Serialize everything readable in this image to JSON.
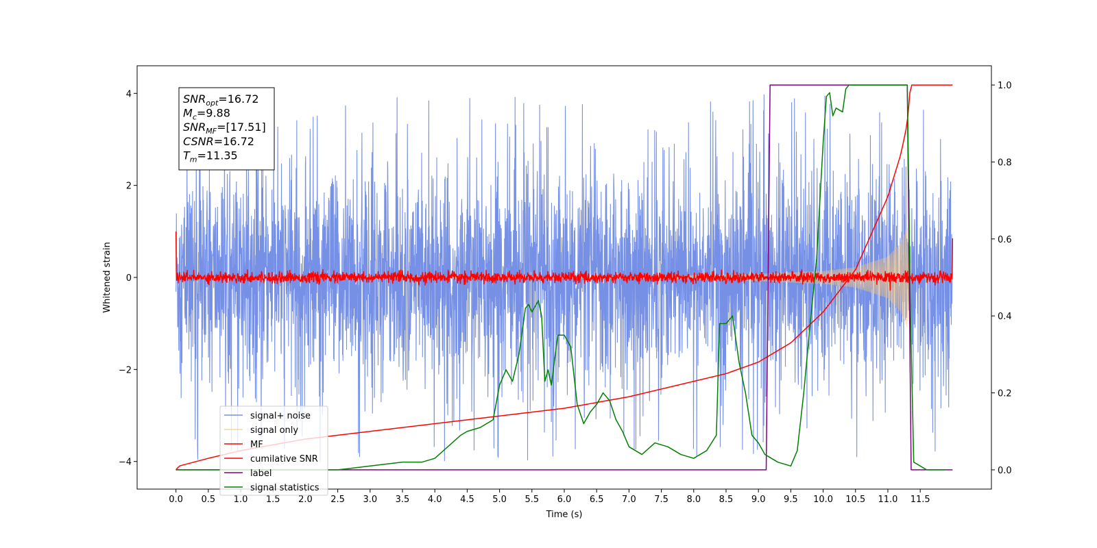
{
  "chart_data": {
    "type": "line",
    "xlabel": "Time (s)",
    "ylabel_left": "Whitened strain",
    "ylabel_right": "",
    "xlim": [
      -0.6,
      12.6
    ],
    "ylim_left": [
      -4.6,
      4.6
    ],
    "ylim_right": [
      -0.05,
      1.05
    ],
    "x_ticks": [
      0.0,
      0.5,
      1.0,
      1.5,
      2.0,
      2.5,
      3.0,
      3.5,
      4.0,
      4.5,
      5.0,
      5.5,
      6.0,
      6.5,
      7.0,
      7.5,
      8.0,
      8.5,
      9.0,
      9.5,
      10.0,
      10.5,
      11.0,
      11.5
    ],
    "x_tick_labels": [
      "0.0",
      "0.5",
      "1.0",
      "1.5",
      "2.0",
      "2.5",
      "3.0",
      "3.5",
      "4.0",
      "4.5",
      "5.0",
      "5.5",
      "6.0",
      "6.5",
      "7.0",
      "7.5",
      "8.0",
      "8.5",
      "9.0",
      "9.5",
      "10.0",
      "10.5",
      "11.0",
      "11.5"
    ],
    "y_left_ticks": [
      -4,
      -2,
      0,
      2,
      4
    ],
    "y_left_tick_labels": [
      "−4",
      "−2",
      "0",
      "2",
      "4"
    ],
    "y_right_ticks": [
      0.0,
      0.2,
      0.4,
      0.6,
      0.8,
      1.0
    ],
    "y_right_tick_labels": [
      "0.0",
      "0.2",
      "0.4",
      "0.6",
      "0.8",
      "1.0"
    ],
    "grid": false,
    "legend_position": "lower-left",
    "annotation": {
      "lines": [
        {
          "sym": "SNR",
          "sub": "opt",
          "val": "=16.72"
        },
        {
          "sym": "M",
          "sub": "c",
          "val": "=9.88"
        },
        {
          "sym": "SNR",
          "sub": "MF",
          "val": "=[17.51]"
        },
        {
          "sym": "CSNR",
          "sub": "",
          "val": "=16.72"
        },
        {
          "sym": "T",
          "sub": "m",
          "val": "=11.35"
        }
      ]
    },
    "series": [
      {
        "name": "signal+ noise",
        "color": "#7690e6",
        "axis": "left",
        "kind": "noise_band",
        "x_range": [
          0,
          12.0
        ],
        "spread": 1.0,
        "spike_max": 4.0
      },
      {
        "name": "signal only",
        "color": "#f5c77e",
        "axis": "left",
        "kind": "chirp_envelope",
        "x_range": [
          0,
          11.35
        ],
        "envelope_x": [
          0,
          5,
          7,
          8,
          9,
          10,
          10.5,
          11.0,
          11.2,
          11.3,
          11.35
        ],
        "envelope_y": [
          0.01,
          0.02,
          0.03,
          0.05,
          0.08,
          0.14,
          0.22,
          0.45,
          0.75,
          1.1,
          0.3
        ]
      },
      {
        "name": "MF",
        "color": "#ff0000",
        "axis": "left",
        "kind": "flat_noise",
        "x_range": [
          0,
          12.0
        ],
        "level": 0.0,
        "spread": 0.06,
        "start_value": 1.0,
        "end_value": 0.85
      },
      {
        "name": "cumilative SNR",
        "color": "#ff0000",
        "axis": "right",
        "kind": "curve",
        "x": [
          0.0,
          0.05,
          0.5,
          1.0,
          2.0,
          3.0,
          4.0,
          5.0,
          6.0,
          7.0,
          8.0,
          8.5,
          9.0,
          9.5,
          10.0,
          10.5,
          11.0,
          11.2,
          11.3,
          11.35,
          12.0
        ],
        "y": [
          0.0,
          0.01,
          0.03,
          0.05,
          0.08,
          0.1,
          0.12,
          0.14,
          0.16,
          0.19,
          0.23,
          0.25,
          0.28,
          0.33,
          0.41,
          0.52,
          0.71,
          0.82,
          0.9,
          1.0,
          1.0
        ]
      },
      {
        "name": "label",
        "color": "#800080",
        "axis": "right",
        "kind": "curve",
        "x": [
          0.0,
          9.12,
          9.18,
          11.3,
          11.36,
          12.0
        ],
        "y": [
          0.0,
          0.0,
          1.0,
          1.0,
          0.0,
          0.0
        ]
      },
      {
        "name": "signal statistics",
        "color": "#008000",
        "axis": "right",
        "kind": "curve",
        "x": [
          0.0,
          0.5,
          1.0,
          1.5,
          2.0,
          2.5,
          3.0,
          3.5,
          3.8,
          4.0,
          4.2,
          4.4,
          4.5,
          4.7,
          4.9,
          5.0,
          5.1,
          5.2,
          5.3,
          5.4,
          5.45,
          5.5,
          5.6,
          5.65,
          5.7,
          5.75,
          5.8,
          5.9,
          6.0,
          6.1,
          6.2,
          6.3,
          6.4,
          6.5,
          6.6,
          6.7,
          6.8,
          6.9,
          7.0,
          7.2,
          7.4,
          7.6,
          7.8,
          8.0,
          8.2,
          8.35,
          8.4,
          8.5,
          8.6,
          8.7,
          8.8,
          8.9,
          9.0,
          9.1,
          9.2,
          9.3,
          9.5,
          9.6,
          9.7,
          9.8,
          9.9,
          10.0,
          10.05,
          10.1,
          10.15,
          10.2,
          10.3,
          10.35,
          10.4,
          10.6,
          10.8,
          11.0,
          11.2,
          11.3,
          11.35,
          11.4,
          11.6,
          11.9
        ],
        "y": [
          0.0,
          0.0,
          0.0,
          0.0,
          0.0,
          0.0,
          0.01,
          0.02,
          0.02,
          0.03,
          0.06,
          0.09,
          0.1,
          0.11,
          0.13,
          0.22,
          0.26,
          0.23,
          0.3,
          0.42,
          0.43,
          0.41,
          0.44,
          0.4,
          0.23,
          0.26,
          0.22,
          0.35,
          0.35,
          0.32,
          0.17,
          0.12,
          0.15,
          0.17,
          0.2,
          0.18,
          0.13,
          0.1,
          0.06,
          0.04,
          0.07,
          0.06,
          0.04,
          0.03,
          0.05,
          0.09,
          0.38,
          0.38,
          0.4,
          0.28,
          0.2,
          0.09,
          0.07,
          0.04,
          0.03,
          0.02,
          0.01,
          0.05,
          0.2,
          0.38,
          0.55,
          0.85,
          0.97,
          0.98,
          0.92,
          0.94,
          0.93,
          0.99,
          1.0,
          1.0,
          1.0,
          1.0,
          1.0,
          1.0,
          0.4,
          0.02,
          0.0,
          0.0
        ]
      }
    ]
  }
}
